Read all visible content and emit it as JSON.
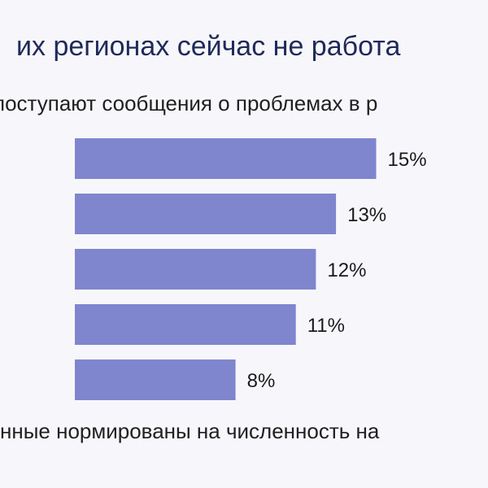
{
  "title": "их регионах сейчас не работа",
  "subtitle": "поступают сообщения о проблемах в р",
  "footnote": "нные нормированы на численность на",
  "colors": {
    "bar": "#7f86cd",
    "background": "#f7f7fb"
  },
  "chart_data": {
    "type": "bar",
    "orientation": "horizontal",
    "categories": [
      "",
      "",
      "",
      "",
      ""
    ],
    "values": [
      15,
      13,
      12,
      11,
      8
    ],
    "data_labels": [
      "15%",
      "13%",
      "12%",
      "11%",
      "8%"
    ],
    "xlim": [
      0,
      20
    ],
    "grid": false,
    "legend": "none"
  }
}
